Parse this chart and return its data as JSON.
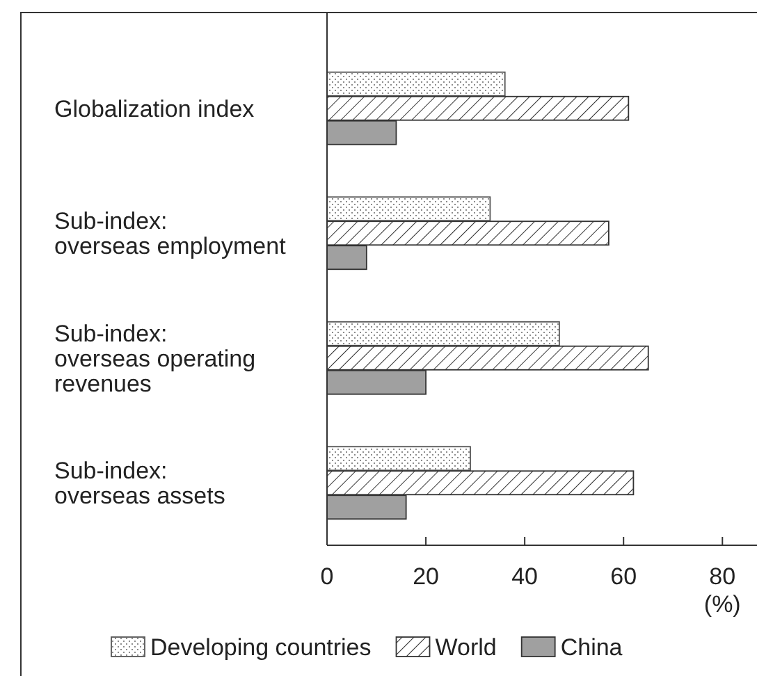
{
  "chart_data": {
    "type": "bar",
    "orientation": "horizontal",
    "categories": [
      "Globalization index",
      "Sub-index: overseas employment",
      "Sub-index: overseas operating revenues",
      "Sub-index: overseas assets"
    ],
    "series": [
      {
        "name": "Developing countries",
        "color": "#555555",
        "values": [
          36,
          33,
          47,
          29
        ]
      },
      {
        "name": "World",
        "color": "#333333",
        "values": [
          61,
          57,
          65,
          62
        ]
      },
      {
        "name": "China",
        "color": "#a0a0a0",
        "values": [
          14,
          8,
          20,
          16
        ]
      }
    ],
    "xlim": [
      0,
      87
    ],
    "xticks": [
      0,
      20,
      40,
      60,
      80
    ],
    "xlabel": "(%)",
    "grid": false,
    "legend": "bottom"
  }
}
